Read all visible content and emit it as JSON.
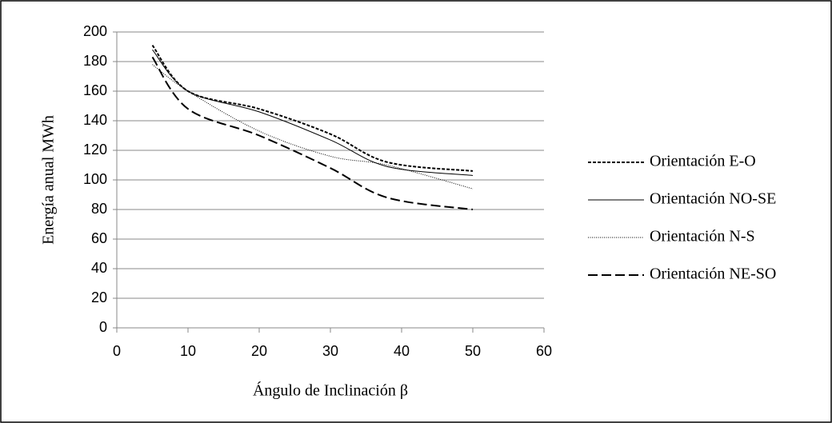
{
  "chart_data": {
    "type": "line",
    "x_label": "Ángulo de Inclinación β",
    "y_label": "Energía anual  MWh",
    "x": [
      5,
      10,
      20,
      30,
      38,
      50
    ],
    "series": [
      {
        "name": "Orientación E-O",
        "color": "#000000",
        "dash": "4 2",
        "width": 2,
        "values": [
          191,
          160,
          148,
          131,
          112,
          106
        ]
      },
      {
        "name": "Orientación NO-SE",
        "color": "#000000",
        "dash": "none",
        "width": 1,
        "values": [
          188,
          160,
          146,
          127,
          109,
          103
        ]
      },
      {
        "name": "Orientación N-S",
        "color": "#000000",
        "dash": "1 1.5",
        "width": 1,
        "values": [
          178,
          160,
          133,
          116,
          110,
          94
        ]
      },
      {
        "name": "Orientación NE-SO",
        "color": "#000000",
        "dash": "12 5",
        "width": 2,
        "values": [
          183,
          148,
          130,
          108,
          88,
          80
        ]
      }
    ],
    "xlim": [
      0,
      60
    ],
    "xticks": [
      0,
      10,
      20,
      30,
      40,
      50,
      60
    ],
    "ylim": [
      0,
      200
    ],
    "yticks": [
      0,
      20,
      40,
      60,
      80,
      100,
      120,
      140,
      160,
      180,
      200
    ],
    "grid": true,
    "legend": "right"
  }
}
